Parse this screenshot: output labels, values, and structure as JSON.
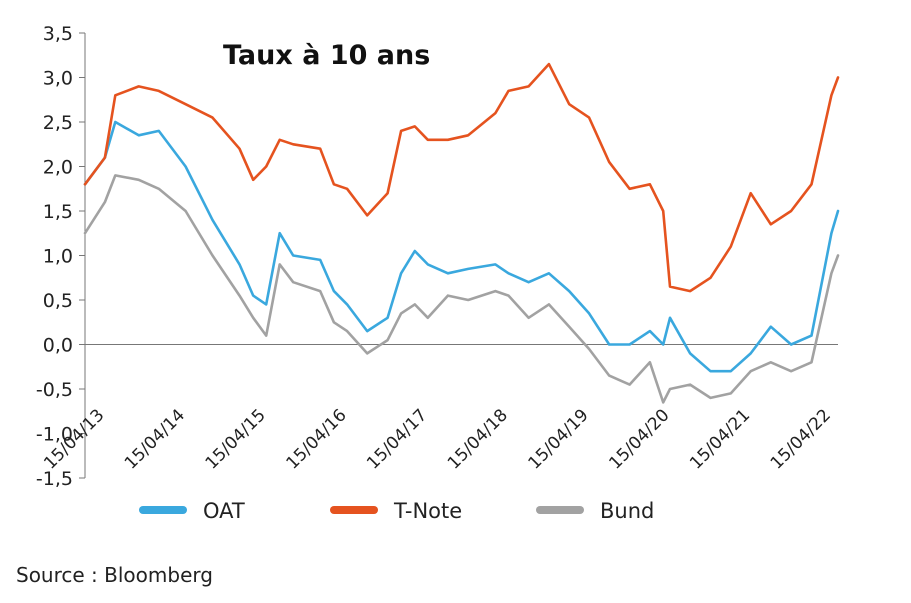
{
  "chart_data": {
    "type": "line",
    "title": "Taux à 10 ans",
    "xlabel": "",
    "ylabel": "",
    "ylim": [
      -1.5,
      3.5
    ],
    "yticks": [
      "3,5",
      "3,0",
      "2,5",
      "2,0",
      "1,5",
      "1,0",
      "0,5",
      "0,0",
      "-0,5",
      "-1,0",
      "-1,5"
    ],
    "ytick_values": [
      3.5,
      3.0,
      2.5,
      2.0,
      1.5,
      1.0,
      0.5,
      0.0,
      -0.5,
      -1.0,
      -1.5
    ],
    "xticks": [
      "15/04/13",
      "15/04/14",
      "15/04/15",
      "15/04/16",
      "15/04/17",
      "15/04/18",
      "15/04/19",
      "15/04/20",
      "15/04/21",
      "15/04/22"
    ],
    "grid": false,
    "legend": "bottom",
    "series": [
      {
        "name": "OAT",
        "color": "#3aa8de",
        "x": [
          "15/01/13",
          "15/04/13",
          "01/06/13",
          "15/09/13",
          "15/12/13",
          "15/04/14",
          "15/08/14",
          "15/12/14",
          "15/02/15",
          "15/04/15",
          "15/06/15",
          "15/08/15",
          "15/12/15",
          "15/02/16",
          "15/04/16",
          "15/07/16",
          "15/10/16",
          "15/12/16",
          "15/02/17",
          "15/04/17",
          "15/07/17",
          "15/10/17",
          "15/02/18",
          "15/04/18",
          "15/07/18",
          "15/10/18",
          "15/01/19",
          "15/04/19",
          "15/07/19",
          "15/10/19",
          "15/01/20",
          "15/03/20",
          "15/04/20",
          "15/07/20",
          "15/10/20",
          "15/01/21",
          "15/04/21",
          "15/07/21",
          "15/10/21",
          "15/01/22",
          "15/04/22",
          "15/05/22"
        ],
        "y": [
          1.8,
          2.1,
          2.5,
          2.35,
          2.4,
          2.0,
          1.4,
          0.9,
          0.55,
          0.45,
          1.25,
          1.0,
          0.95,
          0.6,
          0.45,
          0.15,
          0.3,
          0.8,
          1.05,
          0.9,
          0.8,
          0.85,
          0.9,
          0.8,
          0.7,
          0.8,
          0.6,
          0.35,
          0.0,
          0.0,
          0.15,
          0.0,
          0.3,
          -0.1,
          -0.3,
          -0.3,
          -0.1,
          0.2,
          0.0,
          0.1,
          1.25,
          1.5
        ]
      },
      {
        "name": "T-Note",
        "color": "#e5531f",
        "x": [
          "15/01/13",
          "15/04/13",
          "01/06/13",
          "15/09/13",
          "15/12/13",
          "15/04/14",
          "15/08/14",
          "15/12/14",
          "15/02/15",
          "15/04/15",
          "15/06/15",
          "15/08/15",
          "15/12/15",
          "15/02/16",
          "15/04/16",
          "15/07/16",
          "15/10/16",
          "15/12/16",
          "15/02/17",
          "15/04/17",
          "15/07/17",
          "15/10/17",
          "15/02/18",
          "15/04/18",
          "15/07/18",
          "15/10/18",
          "15/01/19",
          "15/04/19",
          "15/07/19",
          "15/10/19",
          "15/01/20",
          "15/03/20",
          "15/04/20",
          "15/07/20",
          "15/10/20",
          "15/01/21",
          "15/04/21",
          "15/07/21",
          "15/10/21",
          "15/01/22",
          "15/04/22",
          "15/05/22"
        ],
        "y": [
          1.8,
          2.1,
          2.8,
          2.9,
          2.85,
          2.7,
          2.55,
          2.2,
          1.85,
          2.0,
          2.3,
          2.25,
          2.2,
          1.8,
          1.75,
          1.45,
          1.7,
          2.4,
          2.45,
          2.3,
          2.3,
          2.35,
          2.6,
          2.85,
          2.9,
          3.15,
          2.7,
          2.55,
          2.05,
          1.75,
          1.8,
          1.5,
          0.65,
          0.6,
          0.75,
          1.1,
          1.7,
          1.35,
          1.5,
          1.8,
          2.8,
          3.0
        ]
      },
      {
        "name": "Bund",
        "color": "#a2a2a2",
        "x": [
          "15/01/13",
          "15/04/13",
          "01/06/13",
          "15/09/13",
          "15/12/13",
          "15/04/14",
          "15/08/14",
          "15/12/14",
          "15/02/15",
          "15/04/15",
          "15/06/15",
          "15/08/15",
          "15/12/15",
          "15/02/16",
          "15/04/16",
          "15/07/16",
          "15/10/16",
          "15/12/16",
          "15/02/17",
          "15/04/17",
          "15/07/17",
          "15/10/17",
          "15/02/18",
          "15/04/18",
          "15/07/18",
          "15/10/18",
          "15/01/19",
          "15/04/19",
          "15/07/19",
          "15/10/19",
          "15/01/20",
          "15/03/20",
          "15/04/20",
          "15/07/20",
          "15/10/20",
          "15/01/21",
          "15/04/21",
          "15/07/21",
          "15/10/21",
          "15/01/22",
          "15/04/22",
          "15/05/22"
        ],
        "y": [
          1.25,
          1.6,
          1.9,
          1.85,
          1.75,
          1.5,
          1.0,
          0.55,
          0.3,
          0.1,
          0.9,
          0.7,
          0.6,
          0.25,
          0.15,
          -0.1,
          0.05,
          0.35,
          0.45,
          0.3,
          0.55,
          0.5,
          0.6,
          0.55,
          0.3,
          0.45,
          0.2,
          -0.05,
          -0.35,
          -0.45,
          -0.2,
          -0.65,
          -0.5,
          -0.45,
          -0.6,
          -0.55,
          -0.3,
          -0.2,
          -0.3,
          -0.2,
          0.8,
          1.0
        ]
      }
    ],
    "source": "Source : Bloomberg"
  }
}
